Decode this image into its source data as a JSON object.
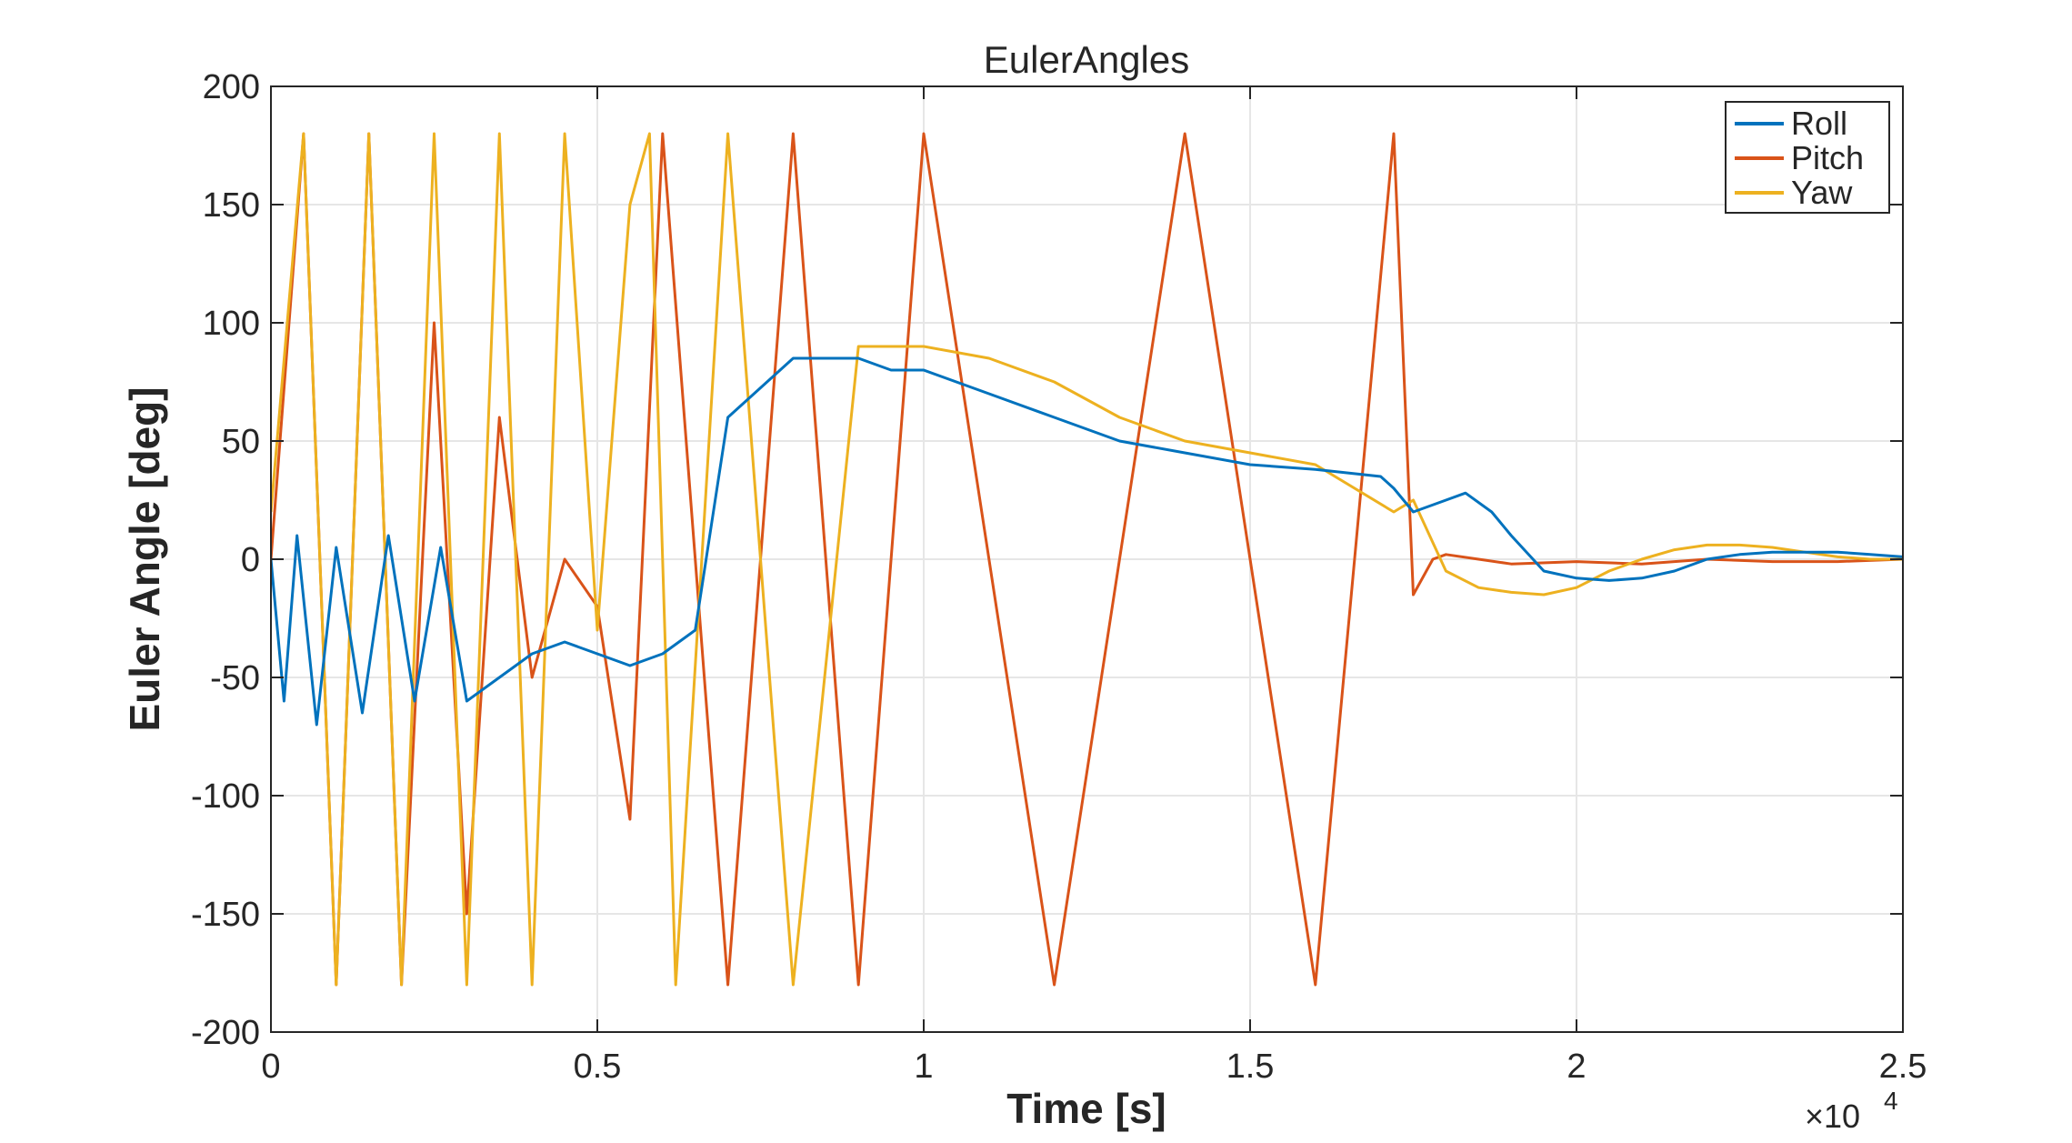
{
  "chart_data": {
    "type": "line",
    "title": "EulerAngles",
    "xlabel": "Time [s]",
    "ylabel": "Euler Angle [deg]",
    "x_exponent_label": "×10",
    "x_exponent_power": "4",
    "xlim": [
      0,
      2.5
    ],
    "ylim": [
      -200,
      200
    ],
    "xticks": [
      0,
      0.5,
      1,
      1.5,
      2,
      2.5
    ],
    "xtick_labels": [
      "0",
      "0.5",
      "1",
      "1.5",
      "2",
      "2.5"
    ],
    "yticks": [
      200,
      150,
      100,
      50,
      0,
      -50,
      -100,
      -150,
      -200
    ],
    "ytick_labels": [
      "200",
      "150",
      "100",
      "50",
      "0",
      "-50",
      "-100",
      "-150",
      "-200"
    ],
    "grid": true,
    "legend_position": "top-right",
    "series": [
      {
        "name": "Roll",
        "color": "#0072BD",
        "x": [
          0,
          0.02,
          0.04,
          0.07,
          0.1,
          0.14,
          0.18,
          0.22,
          0.26,
          0.3,
          0.35,
          0.4,
          0.45,
          0.5,
          0.55,
          0.6,
          0.65,
          0.7,
          0.8,
          0.9,
          0.95,
          1.0,
          1.1,
          1.2,
          1.3,
          1.4,
          1.5,
          1.6,
          1.7,
          1.72,
          1.75,
          1.8,
          1.83,
          1.87,
          1.9,
          1.95,
          2.0,
          2.05,
          2.1,
          2.15,
          2.2,
          2.25,
          2.3,
          2.35,
          2.4,
          2.45,
          2.5
        ],
        "y": [
          0,
          -60,
          10,
          -70,
          5,
          -65,
          10,
          -60,
          5,
          -60,
          -50,
          -40,
          -35,
          -40,
          -45,
          -40,
          -30,
          60,
          85,
          85,
          80,
          80,
          70,
          60,
          50,
          45,
          40,
          38,
          35,
          30,
          20,
          25,
          28,
          20,
          10,
          -5,
          -8,
          -9,
          -8,
          -5,
          0,
          2,
          3,
          3,
          3,
          2,
          1
        ]
      },
      {
        "name": "Pitch",
        "color": "#D95319",
        "x": [
          0,
          0.05,
          0.1,
          0.15,
          0.2,
          0.25,
          0.3,
          0.35,
          0.4,
          0.45,
          0.5,
          0.55,
          0.6,
          0.7,
          0.8,
          0.9,
          1.0,
          1.2,
          1.4,
          1.6,
          1.72,
          1.75,
          1.78,
          1.8,
          1.85,
          1.9,
          2.0,
          2.1,
          2.2,
          2.3,
          2.4,
          2.5
        ],
        "y": [
          0,
          180,
          -180,
          180,
          -180,
          100,
          -150,
          60,
          -50,
          0,
          -20,
          -110,
          180,
          -180,
          180,
          -180,
          180,
          -180,
          180,
          -180,
          180,
          -15,
          0,
          2,
          0,
          -2,
          -1,
          -2,
          0,
          -1,
          -1,
          0
        ]
      },
      {
        "name": "Yaw",
        "color": "#EDB120",
        "x": [
          0,
          0.05,
          0.1,
          0.15,
          0.2,
          0.25,
          0.3,
          0.35,
          0.4,
          0.45,
          0.5,
          0.55,
          0.58,
          0.62,
          0.7,
          0.8,
          0.9,
          1.0,
          1.1,
          1.2,
          1.3,
          1.4,
          1.5,
          1.6,
          1.72,
          1.75,
          1.8,
          1.85,
          1.9,
          1.95,
          2.0,
          2.05,
          2.1,
          2.15,
          2.2,
          2.25,
          2.3,
          2.35,
          2.4,
          2.45,
          2.5
        ],
        "y": [
          20,
          180,
          -180,
          180,
          -180,
          180,
          -180,
          180,
          -180,
          180,
          -30,
          150,
          180,
          -180,
          180,
          -180,
          90,
          90,
          85,
          75,
          60,
          50,
          45,
          40,
          20,
          25,
          -5,
          -12,
          -14,
          -15,
          -12,
          -5,
          0,
          4,
          6,
          6,
          5,
          3,
          1,
          0,
          0
        ]
      }
    ]
  }
}
